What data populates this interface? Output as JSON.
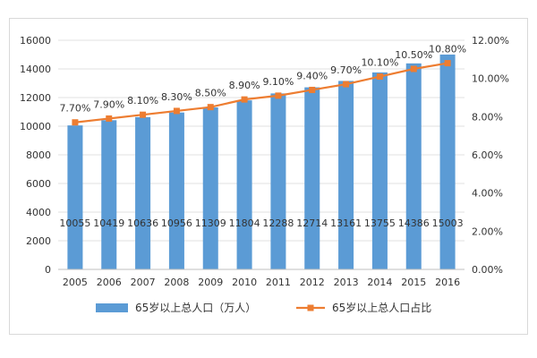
{
  "chart_data": {
    "type": "bar+line",
    "categories": [
      "2005",
      "2006",
      "2007",
      "2008",
      "2009",
      "2010",
      "2011",
      "2012",
      "2013",
      "2014",
      "2015",
      "2016"
    ],
    "series": [
      {
        "name": "65岁以上总人口（万人）",
        "type": "bar",
        "axis": "left",
        "color": "#5b9bd5",
        "values": [
          10055,
          10419,
          10636,
          10956,
          11309,
          11804,
          12288,
          12714,
          13161,
          13755,
          14386,
          15003
        ]
      },
      {
        "name": "65岁以上总人口占比",
        "type": "line",
        "axis": "right",
        "color": "#ed7d31",
        "values": [
          7.7,
          7.9,
          8.1,
          8.3,
          8.5,
          8.9,
          9.1,
          9.4,
          9.7,
          10.1,
          10.5,
          10.8
        ],
        "labels": [
          "7.70%",
          "7.90%",
          "8.10%",
          "8.30%",
          "8.50%",
          "8.90%",
          "9.10%",
          "9.40%",
          "9.70%",
          "10.10%",
          "10.50%",
          "10.80%"
        ]
      }
    ],
    "y_left": {
      "min": 0,
      "max": 16000,
      "step": 2000,
      "ticks": [
        "0",
        "2000",
        "4000",
        "6000",
        "8000",
        "10000",
        "12000",
        "14000",
        "16000"
      ]
    },
    "y_right": {
      "min": 0,
      "max": 12,
      "step": 2,
      "ticks": [
        "0.00%",
        "2.00%",
        "4.00%",
        "6.00%",
        "8.00%",
        "10.00%",
        "12.00%"
      ]
    },
    "grid": true,
    "legend": "bottom"
  }
}
